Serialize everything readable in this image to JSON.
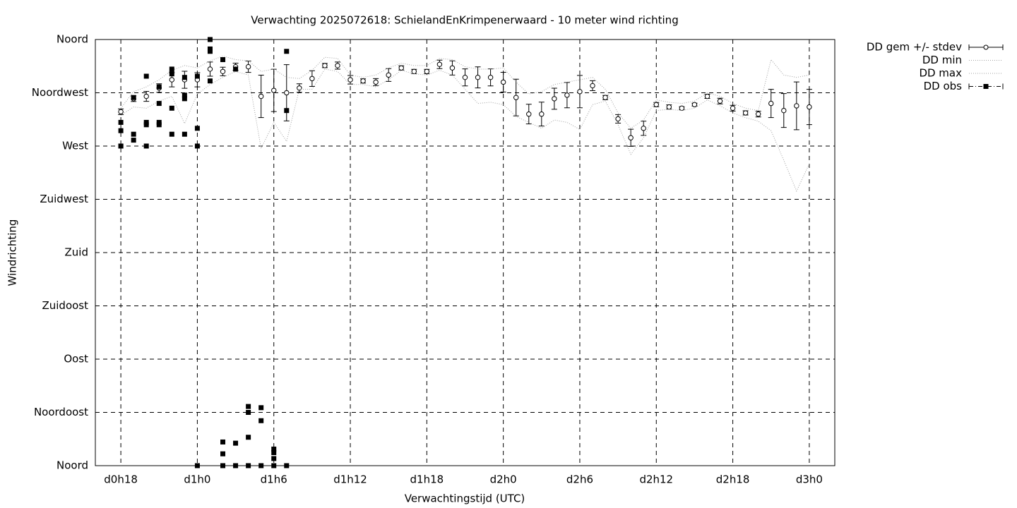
{
  "chart_data": {
    "type": "errorbar",
    "title": "Verwachting 2025072618: SchielandEnKrimpenerwaard - 10 meter wind richting",
    "xlabel": "Verwachtingstijd (UTC)",
    "ylabel": "Windrichting",
    "xlim": [
      16,
      74
    ],
    "ylim": [
      0,
      360
    ],
    "xticks": [
      {
        "value": 18,
        "label": "d0h18"
      },
      {
        "value": 24,
        "label": "d1h0"
      },
      {
        "value": 30,
        "label": "d1h6"
      },
      {
        "value": 36,
        "label": "d1h12"
      },
      {
        "value": 42,
        "label": "d1h18"
      },
      {
        "value": 48,
        "label": "d2h0"
      },
      {
        "value": 54,
        "label": "d2h6"
      },
      {
        "value": 60,
        "label": "d2h12"
      },
      {
        "value": 66,
        "label": "d2h18"
      },
      {
        "value": 72,
        "label": "d3h0"
      }
    ],
    "yticks": [
      {
        "value": 0,
        "label": "Noord"
      },
      {
        "value": 45,
        "label": "Noordoost"
      },
      {
        "value": 90,
        "label": "Oost"
      },
      {
        "value": 135,
        "label": "Zuidoost"
      },
      {
        "value": 180,
        "label": "Zuid"
      },
      {
        "value": 225,
        "label": "Zuidwest"
      },
      {
        "value": 270,
        "label": "West"
      },
      {
        "value": 315,
        "label": "Noordwest"
      },
      {
        "value": 360,
        "label": "Noord"
      }
    ],
    "grid": true,
    "legend": "outside-top-right",
    "x": [
      18,
      19,
      20,
      21,
      22,
      23,
      24,
      25,
      26,
      27,
      28,
      29,
      30,
      31,
      32,
      33,
      34,
      35,
      36,
      37,
      38,
      39,
      40,
      41,
      42,
      43,
      44,
      45,
      46,
      47,
      48,
      49,
      50,
      51,
      52,
      53,
      54,
      55,
      56,
      57,
      58,
      59,
      60,
      61,
      62,
      63,
      64,
      65,
      66,
      67,
      68,
      69,
      70,
      71,
      72
    ],
    "series": [
      {
        "name": "DD gem +/- stdev",
        "type": "errorbar",
        "color": "#000000",
        "values": [
          299,
          310,
          312,
          319,
          326,
          326,
          326,
          335,
          333,
          337,
          337,
          312,
          317,
          315,
          319,
          327,
          338,
          338,
          326,
          325,
          324,
          330,
          336,
          333,
          333,
          339,
          336,
          328,
          328,
          328,
          324,
          311,
          297,
          297,
          310,
          313,
          316,
          321,
          311,
          293,
          277,
          285,
          305,
          303,
          302,
          305,
          312,
          308,
          302,
          298,
          297,
          306,
          300,
          304,
          303
        ],
        "errors": [
          2.4,
          2.4,
          4.2,
          3.6,
          6,
          7.2,
          6,
          6,
          3.6,
          3,
          4.8,
          17.9,
          17.9,
          23.8,
          3.6,
          6.6,
          1.8,
          3,
          3.6,
          1.8,
          3,
          5.4,
          1.8,
          1.8,
          1.8,
          3.6,
          6,
          7.2,
          8.9,
          7.2,
          8.3,
          15.5,
          8.3,
          10.1,
          8.9,
          10.7,
          13.7,
          4.2,
          1.8,
          3.6,
          7.2,
          6,
          1.8,
          1.8,
          1.2,
          1.2,
          1.8,
          2.4,
          2.4,
          1.8,
          2.4,
          11.9,
          14.3,
          20.2,
          14.9
        ]
      },
      {
        "name": "DD min",
        "type": "line",
        "color": "#a0a0a0",
        "values": [
          296,
          303,
          302,
          308,
          312,
          289,
          314,
          322,
          328,
          333,
          330,
          268,
          290,
          274,
          318,
          318,
          335,
          333,
          322,
          322,
          320,
          326,
          334,
          331,
          330,
          334,
          330,
          318,
          306,
          307,
          305,
          295,
          290,
          285,
          292,
          290,
          284,
          305,
          308,
          288,
          263,
          277,
          300,
          301,
          300,
          302,
          309,
          304,
          298,
          294,
          291,
          283,
          258,
          232,
          255
        ]
      },
      {
        "name": "DD max",
        "type": "line",
        "color": "#a0a0a0",
        "values": [
          302,
          316,
          320,
          326,
          334,
          338,
          336,
          342,
          346,
          343,
          342,
          333,
          335,
          328,
          327,
          334,
          345,
          344,
          330,
          328,
          330,
          336,
          340,
          338,
          338,
          344,
          343,
          337,
          335,
          335,
          336,
          324,
          314,
          316,
          322,
          324,
          326,
          328,
          318,
          298,
          285,
          292,
          309,
          307,
          306,
          308,
          315,
          312,
          306,
          302,
          300,
          343,
          330,
          328,
          330
        ]
      },
      {
        "name": "DD obs",
        "type": "scatter",
        "color": "#000000",
        "x": [
          18,
          18,
          18,
          18,
          19,
          19,
          19,
          20,
          20,
          20,
          20,
          21,
          21,
          21,
          21,
          22,
          22,
          22,
          22,
          23,
          23,
          23,
          23,
          24,
          24,
          24,
          24,
          25,
          25,
          25,
          25,
          26,
          26,
          26,
          26,
          27,
          27,
          27,
          28,
          28,
          28,
          28,
          29,
          29,
          29,
          30,
          30,
          30,
          30,
          31,
          31,
          31
        ],
        "values": [
          270,
          270,
          283,
          290,
          311,
          280,
          275,
          329,
          290,
          288,
          270,
          320,
          306,
          290,
          288,
          335,
          331,
          302,
          280,
          328,
          313,
          310,
          280,
          329,
          285,
          270,
          0,
          360,
          352,
          350,
          325,
          343,
          20,
          10,
          0,
          335,
          19,
          0,
          50,
          45,
          24,
          0,
          49,
          38,
          0,
          14,
          11,
          6,
          0,
          350,
          300,
          0
        ]
      }
    ]
  }
}
